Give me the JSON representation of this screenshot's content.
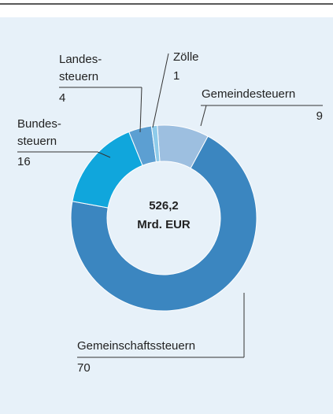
{
  "chart_data": {
    "type": "donut",
    "center_text": [
      "526,2",
      "Mrd. EUR"
    ],
    "categories": [
      [
        "Gemeindesteuern"
      ],
      [
        "Gemeinschaftssteuern"
      ],
      [
        "Bundes-",
        "steuern"
      ],
      [
        "Landes-",
        "steuern"
      ],
      [
        "Zölle"
      ]
    ],
    "values": [
      9,
      70,
      16,
      4,
      1
    ],
    "colors": [
      "#9dbfe0",
      "#3b86c0",
      "#10a6dc",
      "#5c9fd2",
      "#8ecbea"
    ]
  }
}
